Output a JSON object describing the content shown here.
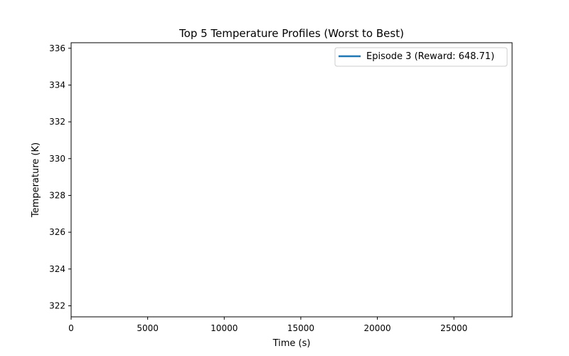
{
  "chart_data": {
    "type": "line",
    "title": "Top 5 Temperature Profiles (Worst to Best)",
    "xlabel": "Time (s)",
    "ylabel": "Temperature (K)",
    "xlim": [
      0,
      28800
    ],
    "ylim": [
      321.4,
      336.3
    ],
    "x_ticks": [
      0,
      5000,
      10000,
      15000,
      20000,
      25000
    ],
    "y_ticks": [
      322,
      324,
      326,
      328,
      330,
      332,
      334,
      336
    ],
    "grid": false,
    "legend": {
      "position": "top-right"
    },
    "series": [
      {
        "name": "Episode 3 (Reward: 648.71)",
        "color": "#1f77b4",
        "x": [],
        "y": []
      }
    ]
  }
}
